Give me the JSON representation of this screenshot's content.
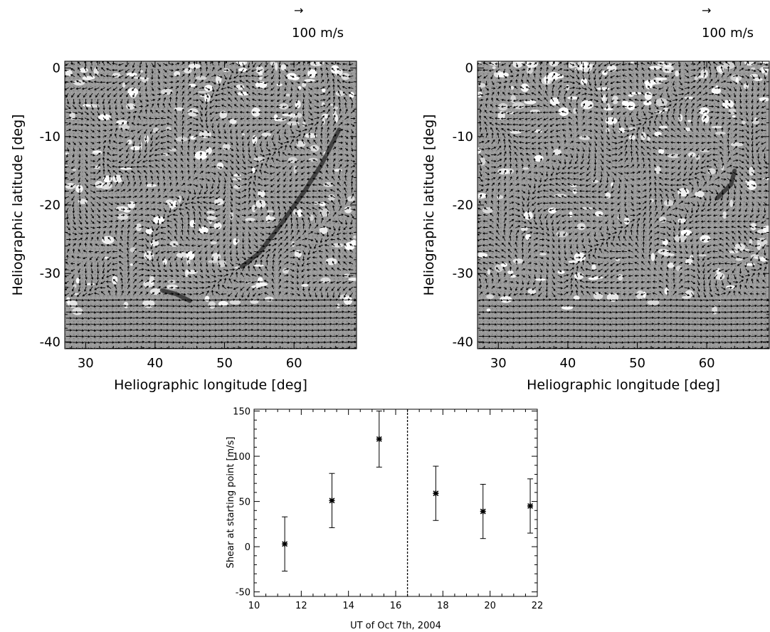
{
  "chart_data": [
    {
      "type": "vector-field",
      "panel": "top-left",
      "xlabel": "Heliographic longitude [deg]",
      "ylabel": "Heliographic latitude [deg]",
      "xlim": [
        27,
        69
      ],
      "ylim": [
        -41,
        1
      ],
      "xticks": [
        30,
        40,
        50,
        60
      ],
      "yticks": [
        0,
        -10,
        -20,
        -30,
        -40
      ],
      "reference_arrow": {
        "symbol": "→",
        "label": "100 m/s"
      },
      "dark_features": [
        {
          "points": [
            [
              66.5,
              -9
            ],
            [
              64,
              -14
            ],
            [
              61.5,
              -18
            ],
            [
              58,
              -23
            ],
            [
              55,
              -27
            ],
            [
              52.5,
              -29
            ]
          ]
        },
        {
          "points": [
            [
              41,
              -32.5
            ],
            [
              43,
              -33
            ],
            [
              45,
              -34
            ]
          ]
        }
      ]
    },
    {
      "type": "vector-field",
      "panel": "top-right",
      "xlabel": "Heliographic longitude [deg]",
      "ylabel": "Heliographic latitude [deg]",
      "xlim": [
        27,
        69
      ],
      "ylim": [
        -41,
        1
      ],
      "xticks": [
        30,
        40,
        50,
        60
      ],
      "yticks": [
        0,
        -10,
        -20,
        -30,
        -40
      ],
      "reference_arrow": {
        "symbol": "→",
        "label": "100 m/s"
      },
      "dark_features": [
        {
          "points": [
            [
              64,
              -15
            ],
            [
              63.5,
              -17
            ],
            [
              61.5,
              -19
            ]
          ]
        }
      ]
    },
    {
      "type": "scatter",
      "panel": "bottom",
      "xlabel": "UT of Oct 7th, 2004",
      "ylabel": "Shear at starting point [m/s]",
      "xlim": [
        10,
        22
      ],
      "ylim": [
        -55,
        152
      ],
      "xticks": [
        10,
        12,
        14,
        16,
        18,
        20,
        22
      ],
      "yticks": [
        -50,
        0,
        50,
        100,
        150
      ],
      "x": [
        11.3,
        13.3,
        15.3,
        17.7,
        19.7,
        21.7
      ],
      "y": [
        3,
        51,
        119,
        59,
        39,
        45
      ],
      "error": [
        30,
        30,
        31,
        30,
        30,
        30
      ],
      "vline_x": 16.5
    }
  ]
}
